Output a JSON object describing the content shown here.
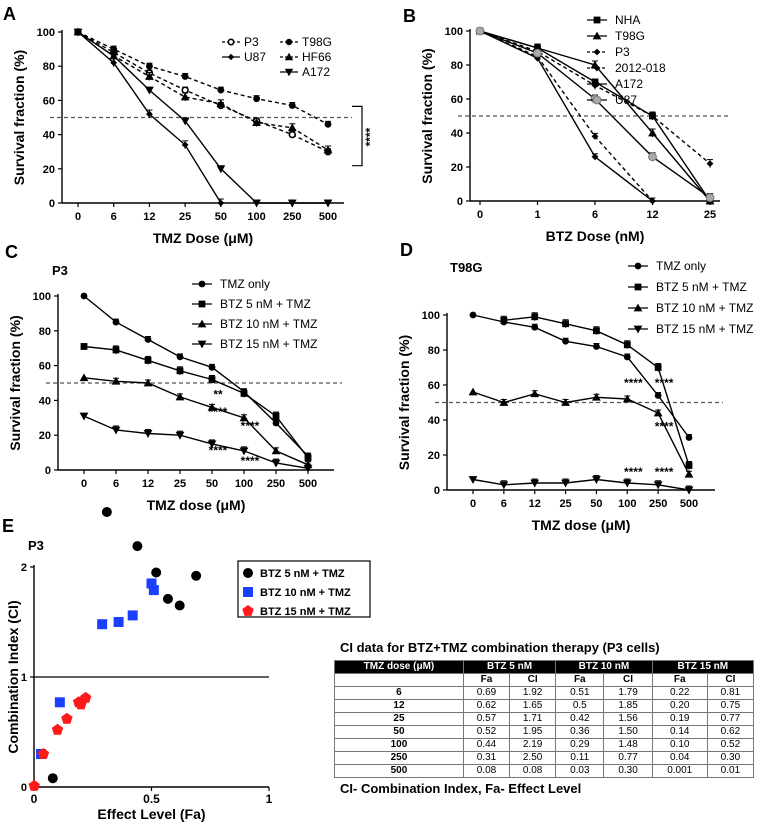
{
  "chart_data": [
    {
      "panel": "A",
      "type": "line",
      "title": "",
      "xlabel": "TMZ Dose (μM)",
      "ylabel": "Survival fraction  (%)",
      "categories": [
        "0",
        "6",
        "12",
        "25",
        "50",
        "100",
        "250",
        "500"
      ],
      "ylim": [
        0,
        100
      ],
      "yticks": [
        "0",
        "20",
        "40",
        "60",
        "80",
        "100"
      ],
      "reference_line": 50,
      "annotation": "****",
      "series": [
        {
          "name": "P3",
          "marker": "circle-open",
          "dash": true,
          "values": [
            100,
            88,
            76,
            66,
            57,
            48,
            40,
            30
          ]
        },
        {
          "name": "U87",
          "marker": "diamond",
          "dash": false,
          "values": [
            100,
            82,
            52,
            34,
            0,
            null,
            null,
            null
          ]
        },
        {
          "name": "T98G",
          "marker": "circle",
          "dash": true,
          "values": [
            100,
            90,
            80,
            74,
            66,
            61,
            57,
            46
          ]
        },
        {
          "name": "HF66",
          "marker": "triangle",
          "dash": true,
          "values": [
            100,
            86,
            74,
            62,
            58,
            47,
            44,
            31
          ]
        },
        {
          "name": "A172",
          "marker": "triangle-down",
          "dash": false,
          "values": [
            100,
            86,
            66,
            48,
            20,
            0,
            0,
            0
          ]
        }
      ]
    },
    {
      "panel": "B",
      "type": "line",
      "xlabel": "BTZ Dose (nM)",
      "ylabel": "Survival fraction  (%)",
      "categories": [
        "0",
        "1",
        "6",
        "12",
        "25"
      ],
      "ylim": [
        0,
        100
      ],
      "yticks": [
        "0",
        "20",
        "40",
        "60",
        "80",
        "100"
      ],
      "reference_line": 50,
      "series": [
        {
          "name": "NHA",
          "marker": "square",
          "dash": false,
          "values": [
            100,
            90,
            70,
            50,
            0
          ]
        },
        {
          "name": "T98G",
          "marker": "triangle",
          "dash": false,
          "values": [
            100,
            90,
            80,
            40,
            0
          ]
        },
        {
          "name": "P3",
          "marker": "diamond",
          "dash": true,
          "values": [
            100,
            85,
            38,
            0,
            null
          ]
        },
        {
          "name": "2012-018",
          "marker": "diamond",
          "dash": true,
          "values": [
            100,
            88,
            68,
            50,
            22
          ]
        },
        {
          "name": "A172",
          "marker": "diamond",
          "dash": false,
          "values": [
            100,
            84,
            26,
            0,
            null
          ]
        },
        {
          "name": "U87",
          "marker": "circle-gray",
          "dash": false,
          "values": [
            100,
            87,
            60,
            26,
            2
          ]
        }
      ]
    },
    {
      "panel": "C",
      "type": "line",
      "title": "P3",
      "xlabel": "TMZ dose (μM)",
      "ylabel": "Survival fraction  (%)",
      "categories": [
        "0",
        "6",
        "12",
        "25",
        "50",
        "100",
        "250",
        "500"
      ],
      "ylim": [
        0,
        100
      ],
      "yticks": [
        "0",
        "20",
        "40",
        "60",
        "80",
        "100"
      ],
      "reference_line": 50,
      "annotations": [
        {
          "text": "**",
          "cat": 4,
          "y": 41
        },
        {
          "text": "****",
          "cat": 4,
          "y": 31
        },
        {
          "text": "****",
          "cat": 5,
          "y": 23
        },
        {
          "text": "****",
          "cat": 4,
          "y": 9
        },
        {
          "text": "****",
          "cat": 5,
          "y": 3
        }
      ],
      "series": [
        {
          "name": "TMZ only",
          "marker": "circle",
          "values": [
            100,
            85,
            75,
            65,
            59,
            45,
            27,
            8
          ]
        },
        {
          "name": "BTZ 5 nM + TMZ",
          "marker": "square",
          "values": [
            71,
            69,
            63,
            57,
            52,
            44,
            31,
            7
          ]
        },
        {
          "name": "BTZ 10 nM + TMZ",
          "marker": "triangle",
          "values": [
            53,
            51,
            50,
            42,
            36,
            30,
            11,
            3
          ]
        },
        {
          "name": "BTZ 15 nM + TMZ",
          "marker": "triangle-down",
          "values": [
            31,
            23,
            21,
            20,
            15,
            11,
            4,
            1
          ]
        }
      ]
    },
    {
      "panel": "D",
      "type": "line",
      "title": "T98G",
      "xlabel": "TMZ dose (μM)",
      "ylabel": "Survival fraction  (%)",
      "categories": [
        "0",
        "6",
        "12",
        "25",
        "50",
        "100",
        "250",
        "500"
      ],
      "ylim": [
        0,
        100
      ],
      "yticks": [
        "0",
        "20",
        "40",
        "60",
        "80",
        "100"
      ],
      "reference_line": 50,
      "annotations": [
        {
          "text": "****",
          "cat": 5,
          "y": 59
        },
        {
          "text": "****",
          "cat": 6,
          "y": 59
        },
        {
          "text": "****",
          "cat": 6,
          "y": 34
        },
        {
          "text": "****",
          "cat": 5,
          "y": 8
        },
        {
          "text": "****",
          "cat": 6,
          "y": 8
        }
      ],
      "series": [
        {
          "name": "TMZ only",
          "marker": "circle",
          "values": [
            100,
            96,
            93,
            85,
            82,
            76,
            54,
            30
          ]
        },
        {
          "name": "BTZ 5 nM + TMZ",
          "marker": "square",
          "values": [
            null,
            97,
            99,
            95,
            91,
            83,
            70,
            14
          ]
        },
        {
          "name": "BTZ 10 nM + TMZ",
          "marker": "triangle",
          "values": [
            56,
            50,
            55,
            50,
            53,
            52,
            44,
            9
          ]
        },
        {
          "name": "BTZ 15 nM + TMZ",
          "marker": "triangle-down",
          "values": [
            6,
            3,
            4,
            4,
            6,
            4,
            3,
            0
          ]
        }
      ]
    },
    {
      "panel": "E",
      "type": "scatter",
      "title": "P3",
      "xlabel": "Effect Level (Fa)",
      "ylabel": "Combination Index (CI)",
      "xlim": [
        0,
        1
      ],
      "ylim": [
        0,
        2
      ],
      "xticks": [
        "0",
        "0.5",
        "1"
      ],
      "yticks": [
        "0",
        "1",
        "2"
      ],
      "reference_line": 1,
      "series": [
        {
          "name": "BTZ 5 nM + TMZ",
          "color": "#000000",
          "marker": "circle",
          "points": [
            [
              0.69,
              1.92
            ],
            [
              0.62,
              1.65
            ],
            [
              0.57,
              1.71
            ],
            [
              0.52,
              1.95
            ],
            [
              0.44,
              2.19
            ],
            [
              0.31,
              2.5
            ],
            [
              0.08,
              0.08
            ]
          ]
        },
        {
          "name": "BTZ 10 nM + TMZ",
          "color": "#1a3fff",
          "marker": "square",
          "points": [
            [
              0.51,
              1.79
            ],
            [
              0.5,
              1.85
            ],
            [
              0.42,
              1.56
            ],
            [
              0.36,
              1.5
            ],
            [
              0.29,
              1.48
            ],
            [
              0.11,
              0.77
            ],
            [
              0.03,
              0.3
            ]
          ]
        },
        {
          "name": "BTZ 15 nM + TMZ",
          "color": "#ff1a1a",
          "marker": "pentagon",
          "points": [
            [
              0.22,
              0.81
            ],
            [
              0.2,
              0.75
            ],
            [
              0.19,
              0.77
            ],
            [
              0.14,
              0.62
            ],
            [
              0.1,
              0.52
            ],
            [
              0.04,
              0.3
            ],
            [
              0.001,
              0.01
            ]
          ]
        }
      ]
    }
  ],
  "panel_letters": [
    "A",
    "B",
    "C",
    "D",
    "E"
  ],
  "table": {
    "title": "CI data for BTZ+TMZ combination therapy (P3 cells)",
    "col_dose": "TMZ dose (μM)",
    "groups": [
      "BTZ 5 nM",
      "BTZ 10 nM",
      "BTZ 15 nM"
    ],
    "sub": [
      "Fa",
      "CI",
      "Fa",
      "CI",
      "Fa",
      "CI"
    ],
    "rows": [
      [
        "6",
        "0.69",
        "1.92",
        "0.51",
        "1.79",
        "0.22",
        "0.81"
      ],
      [
        "12",
        "0.62",
        "1.65",
        "0.5",
        "1.85",
        "0.20",
        "0.75"
      ],
      [
        "25",
        "0.57",
        "1.71",
        "0.42",
        "1.56",
        "0.19",
        "0.77"
      ],
      [
        "50",
        "0.52",
        "1.95",
        "0.36",
        "1.50",
        "0.14",
        "0.62"
      ],
      [
        "100",
        "0.44",
        "2.19",
        "0.29",
        "1.48",
        "0.10",
        "0.52"
      ],
      [
        "250",
        "0.31",
        "2.50",
        "0.11",
        "0.77",
        "0.04",
        "0.30"
      ],
      [
        "500",
        "0.08",
        "0.08",
        "0.03",
        "0.30",
        "0.001",
        "0.01"
      ]
    ],
    "footnote": "CI- Combination Index, Fa- Effect Level"
  }
}
